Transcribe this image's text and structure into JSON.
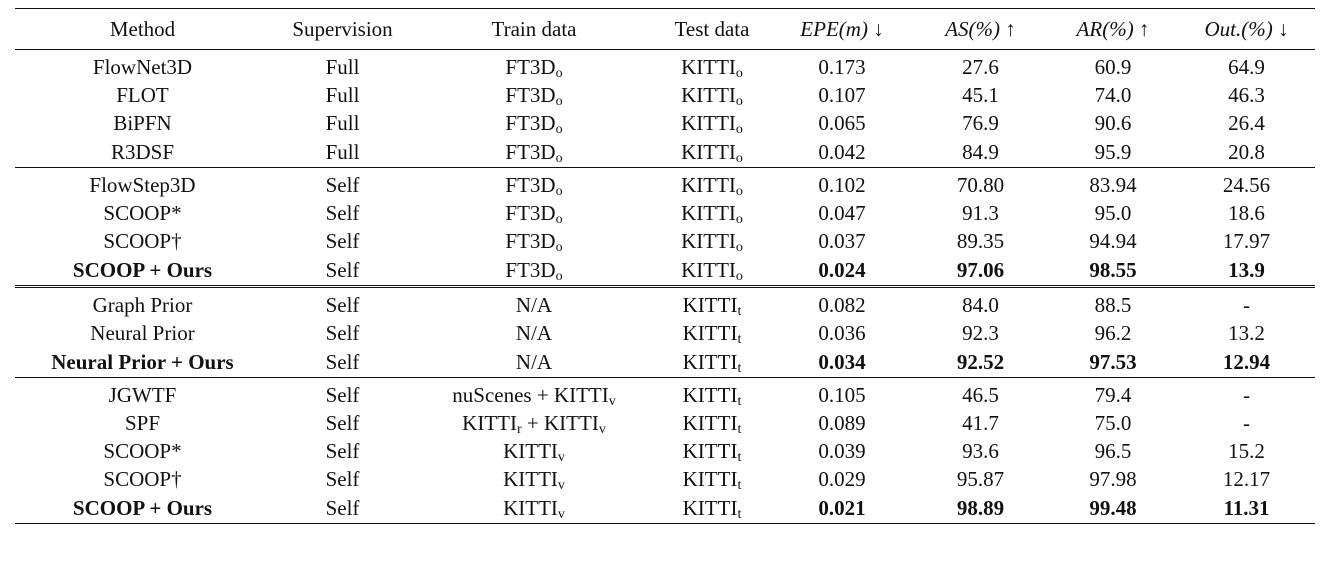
{
  "header": {
    "method": "Method",
    "supervision": "Supervision",
    "train": "Train data",
    "test": "Test data",
    "epe": "EPE(m) ↓",
    "as": "AS(%) ↑",
    "ar": "AR(%) ↑",
    "out": "Out.(%) ↓"
  },
  "groups": [
    {
      "separator": "none",
      "rows": [
        {
          "method": "FlowNet3D",
          "sup": "Full",
          "train": "FT3D",
          "train_sub": "o",
          "test": "KITTI",
          "test_sub": "o",
          "epe": "0.173",
          "as": "27.6",
          "ar": "60.9",
          "out": "64.9",
          "bold": false
        },
        {
          "method": "FLOT",
          "sup": "Full",
          "train": "FT3D",
          "train_sub": "o",
          "test": "KITTI",
          "test_sub": "o",
          "epe": "0.107",
          "as": "45.1",
          "ar": "74.0",
          "out": "46.3",
          "bold": false
        },
        {
          "method": "BiPFN",
          "sup": "Full",
          "train": "FT3D",
          "train_sub": "o",
          "test": "KITTI",
          "test_sub": "o",
          "epe": "0.065",
          "as": "76.9",
          "ar": "90.6",
          "out": "26.4",
          "bold": false
        },
        {
          "method": "R3DSF",
          "sup": "Full",
          "train": "FT3D",
          "train_sub": "o",
          "test": "KITTI",
          "test_sub": "o",
          "epe": "0.042",
          "as": "84.9",
          "ar": "95.9",
          "out": "20.8",
          "bold": false
        }
      ]
    },
    {
      "separator": "single",
      "rows": [
        {
          "method": "FlowStep3D",
          "sup": "Self",
          "train": "FT3D",
          "train_sub": "o",
          "test": "KITTI",
          "test_sub": "o",
          "epe": "0.102",
          "as": "70.80",
          "ar": "83.94",
          "out": "24.56",
          "bold": false
        },
        {
          "method": "SCOOP*",
          "sup": "Self",
          "train": "FT3D",
          "train_sub": "o",
          "test": "KITTI",
          "test_sub": "o",
          "epe": "0.047",
          "as": "91.3",
          "ar": "95.0",
          "out": "18.6",
          "bold": false
        },
        {
          "method": "SCOOP†",
          "sup": "Self",
          "train": "FT3D",
          "train_sub": "o",
          "test": "KITTI",
          "test_sub": "o",
          "epe": "0.037",
          "as": "89.35",
          "ar": "94.94",
          "out": "17.97",
          "bold": false
        },
        {
          "method": "SCOOP + Ours",
          "sup": "Self",
          "train": "FT3D",
          "train_sub": "o",
          "test": "KITTI",
          "test_sub": "o",
          "epe": "0.024",
          "as": "97.06",
          "ar": "98.55",
          "out": "13.9",
          "bold": true
        }
      ]
    },
    {
      "separator": "double",
      "rows": [
        {
          "method": "Graph Prior",
          "sup": "Self",
          "train": "N/A",
          "train_sub": "",
          "test": "KITTI",
          "test_sub": "t",
          "epe": "0.082",
          "as": "84.0",
          "ar": "88.5",
          "out": "-",
          "bold": false
        },
        {
          "method": "Neural Prior",
          "sup": "Self",
          "train": "N/A",
          "train_sub": "",
          "test": "KITTI",
          "test_sub": "t",
          "epe": "0.036",
          "as": "92.3",
          "ar": "96.2",
          "out": "13.2",
          "bold": false
        },
        {
          "method": "Neural Prior + Ours",
          "sup": "Self",
          "train": "N/A",
          "train_sub": "",
          "test": "KITTI",
          "test_sub": "t",
          "epe": "0.034",
          "as": "92.52",
          "ar": "97.53",
          "out": "12.94",
          "bold": true
        }
      ]
    },
    {
      "separator": "single",
      "rows": [
        {
          "method": "JGWTF",
          "sup": "Self",
          "train": "nuScenes + KITTI",
          "train_sub": "v",
          "test": "KITTI",
          "test_sub": "t",
          "epe": "0.105",
          "as": "46.5",
          "ar": "79.4",
          "out": "-",
          "bold": false
        },
        {
          "method": "SPF",
          "sup": "Self",
          "train_parts": [
            {
              "text": "KITTI",
              "sub": "r"
            },
            {
              "text": " + KITTI",
              "sub": "v"
            }
          ],
          "test": "KITTI",
          "test_sub": "t",
          "epe": "0.089",
          "as": "41.7",
          "ar": "75.0",
          "out": "-",
          "bold": false
        },
        {
          "method": "SCOOP*",
          "sup": "Self",
          "train": "KITTI",
          "train_sub": "v",
          "test": "KITTI",
          "test_sub": "t",
          "epe": "0.039",
          "as": "93.6",
          "ar": "96.5",
          "out": "15.2",
          "bold": false
        },
        {
          "method": "SCOOP†",
          "sup": "Self",
          "train": "KITTI",
          "train_sub": "v",
          "test": "KITTI",
          "test_sub": "t",
          "epe": "0.029",
          "as": "95.87",
          "ar": "97.98",
          "out": "12.17",
          "bold": false
        },
        {
          "method": "SCOOP + Ours",
          "sup": "Self",
          "train": "KITTI",
          "train_sub": "v",
          "test": "KITTI",
          "test_sub": "t",
          "epe": "0.021",
          "as": "98.89",
          "ar": "99.48",
          "out": "11.31",
          "bold": true
        }
      ]
    }
  ]
}
